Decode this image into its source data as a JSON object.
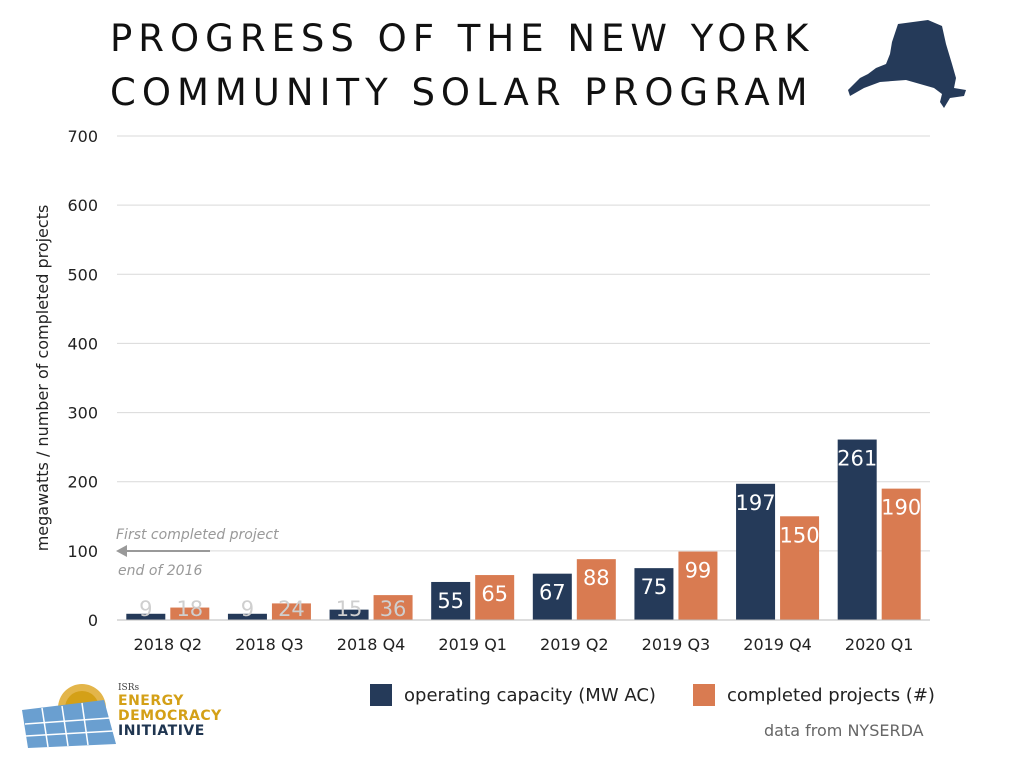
{
  "header": {
    "title_line1": "PROGRESS OF THE NEW YORK",
    "title_line2": "COMMUNITY SOLAR PROGRAM"
  },
  "chart_data": {
    "type": "bar",
    "categories": [
      "2018 Q2",
      "2018 Q3",
      "2018 Q4",
      "2019 Q1",
      "2019 Q2",
      "2019 Q3",
      "2019 Q4",
      "2020 Q1"
    ],
    "series": [
      {
        "name": "operating capacity (MW AC)",
        "values": [
          9,
          9,
          15,
          55,
          67,
          75,
          197,
          261
        ],
        "color": "#253a59"
      },
      {
        "name": "completed projects (#)",
        "values": [
          18,
          24,
          36,
          65,
          88,
          99,
          150,
          190
        ],
        "color": "#d97b51"
      }
    ],
    "ylabel": "megawatts / number of completed projects",
    "xlabel": "",
    "ylim": [
      0,
      700
    ],
    "yticks": [
      0,
      100,
      200,
      300,
      400,
      500,
      600,
      700
    ],
    "grid": true,
    "legend": "bottom",
    "annotation": {
      "text_line1": "First completed project",
      "text_line2": "end of 2016",
      "arrow_value": 100,
      "color": "#999999"
    }
  },
  "source": "data from NYSERDA",
  "logo": {
    "org": "ISRs",
    "line1": "ENERGY",
    "line2": "DEMOCRACY",
    "line3": "INITIATIVE",
    "colors": {
      "gold": "#d4a017",
      "navy": "#1f3550",
      "panel": "#6a9fd0"
    }
  }
}
